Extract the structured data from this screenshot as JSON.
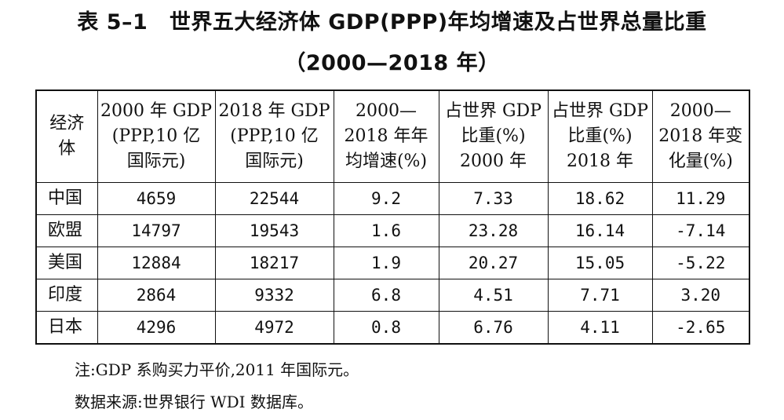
{
  "title": {
    "line1": "表 5–1　世界五大经济体 GDP(PPP)年均增速及占世界总量比重",
    "line2": "（2000—2018 年）"
  },
  "table": {
    "headers": [
      [
        "经济",
        "体"
      ],
      [
        "2000 年 GDP",
        "(PPP,10 亿",
        "国际元)"
      ],
      [
        "2018 年 GDP",
        "(PPP,10 亿",
        "国际元)"
      ],
      [
        "2000—",
        "2018 年年",
        "均增速(%)"
      ],
      [
        "占世界 GDP",
        "比重(%)",
        "2000 年"
      ],
      [
        "占世界 GDP",
        "比重(%)",
        "2018 年"
      ],
      [
        "2000—",
        "2018 年变",
        "化量(%)"
      ]
    ],
    "rows": [
      [
        "中国",
        "4659",
        "22544",
        "9.2",
        "7.33",
        "18.62",
        "11.29"
      ],
      [
        "欧盟",
        "14797",
        "19543",
        "1.6",
        "23.28",
        "16.14",
        "-7.14"
      ],
      [
        "美国",
        "12884",
        "18217",
        "1.9",
        "20.27",
        "15.05",
        "-5.22"
      ],
      [
        "印度",
        "2864",
        "9332",
        "6.8",
        "4.51",
        "7.71",
        "3.20"
      ],
      [
        "日本",
        "4296",
        "4972",
        "0.8",
        "6.76",
        "4.11",
        "-2.65"
      ]
    ]
  },
  "notes": {
    "note": "注:GDP 系购买力平价,2011 年国际元。",
    "source": "数据来源:世界银行 WDI 数据库。"
  }
}
